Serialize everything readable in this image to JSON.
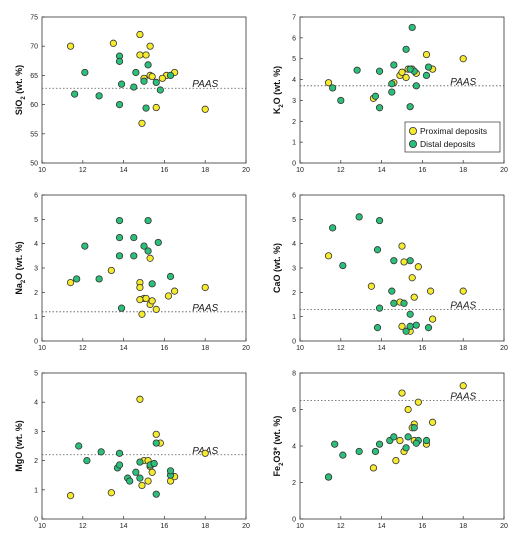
{
  "colors": {
    "proximal": "#f5ea2d",
    "distal": "#2bbf7a",
    "stroke": "#333333"
  },
  "legend": {
    "items": [
      {
        "key": "proximal",
        "label": "Proximal deposits"
      },
      {
        "key": "distal",
        "label": "Distal deposits"
      }
    ]
  },
  "chart_data": [
    {
      "id": "sio2",
      "type": "scatter",
      "ylabel_main": "SiO",
      "ylabel_sub": "2",
      "ylabel_tail": " (wt. %)",
      "xlim": [
        10,
        20
      ],
      "ylim": [
        50,
        75
      ],
      "xticks": [
        10,
        12,
        14,
        16,
        18,
        20
      ],
      "yticks": [
        50,
        55,
        60,
        65,
        70,
        75
      ],
      "ref": {
        "label": "PAAS",
        "value": 62.8
      },
      "series": [
        {
          "key": "proximal",
          "name": "Proximal deposits",
          "points": [
            [
              11.4,
              70
            ],
            [
              13.5,
              70.5
            ],
            [
              14.8,
              72
            ],
            [
              15.3,
              70
            ],
            [
              14.8,
              68.5
            ],
            [
              15.1,
              68.5
            ],
            [
              15.3,
              65
            ],
            [
              15,
              64.5
            ],
            [
              15.4,
              64.8
            ],
            [
              16.1,
              65
            ],
            [
              15.9,
              64.5
            ],
            [
              16.5,
              65.5
            ],
            [
              15.6,
              59.5
            ],
            [
              14.9,
              56.8
            ],
            [
              18,
              59.2
            ]
          ]
        },
        {
          "key": "distal",
          "name": "Distal deposits",
          "points": [
            [
              11.6,
              61.8
            ],
            [
              12.1,
              65.5
            ],
            [
              12.8,
              61.5
            ],
            [
              13.8,
              68.3
            ],
            [
              13.8,
              67.4
            ],
            [
              13.9,
              63.5
            ],
            [
              13.8,
              60
            ],
            [
              14.6,
              65.5
            ],
            [
              14.5,
              63
            ],
            [
              15,
              64
            ],
            [
              15.2,
              66.8
            ],
            [
              15.6,
              63.8
            ],
            [
              15.8,
              62.5
            ],
            [
              16.3,
              65
            ],
            [
              15.1,
              59.4
            ]
          ]
        }
      ]
    },
    {
      "id": "k2o",
      "type": "scatter",
      "ylabel_main": "K",
      "ylabel_sub": "2",
      "ylabel_tail": "O (wt. %)",
      "xlim": [
        10,
        20
      ],
      "ylim": [
        0,
        7
      ],
      "xticks": [
        10,
        12,
        14,
        16,
        18,
        20
      ],
      "yticks": [
        0,
        1,
        2,
        3,
        4,
        5,
        6,
        7
      ],
      "ref": {
        "label": "PAAS",
        "value": 3.7
      },
      "series": [
        {
          "key": "proximal",
          "name": "Proximal deposits",
          "points": [
            [
              11.4,
              3.85
            ],
            [
              13.6,
              3.1
            ],
            [
              14.6,
              3.85
            ],
            [
              14.9,
              4.2
            ],
            [
              15,
              4.35
            ],
            [
              15.2,
              4.1
            ],
            [
              15.3,
              4.5
            ],
            [
              15.5,
              4.5
            ],
            [
              15.7,
              4.3
            ],
            [
              16.2,
              5.2
            ],
            [
              16.5,
              4.5
            ],
            [
              18,
              5
            ]
          ]
        },
        {
          "key": "distal",
          "name": "Distal deposits",
          "points": [
            [
              11.6,
              3.6
            ],
            [
              12,
              3
            ],
            [
              12.8,
              4.45
            ],
            [
              13.7,
              3.2
            ],
            [
              13.9,
              4.4
            ],
            [
              13.9,
              2.65
            ],
            [
              14.5,
              3.8
            ],
            [
              14.5,
              3.4
            ],
            [
              14.6,
              4.7
            ],
            [
              15.2,
              5.45
            ],
            [
              15.4,
              2.7
            ],
            [
              15.5,
              6.5
            ],
            [
              15.6,
              4.4
            ],
            [
              15.7,
              3.7
            ],
            [
              16.2,
              4.2
            ],
            [
              16.3,
              4.6
            ],
            [
              15.4,
              4.5
            ]
          ]
        }
      ]
    },
    {
      "id": "na2o",
      "type": "scatter",
      "ylabel_main": "Na",
      "ylabel_sub": "2",
      "ylabel_tail": "O (wt. %)",
      "xlim": [
        10,
        20
      ],
      "ylim": [
        0,
        6
      ],
      "xticks": [
        10,
        12,
        14,
        16,
        18,
        20
      ],
      "yticks": [
        0,
        1,
        2,
        3,
        4,
        5,
        6
      ],
      "ref": {
        "label": "PAAS",
        "value": 1.2
      },
      "series": [
        {
          "key": "proximal",
          "name": "Proximal deposits",
          "points": [
            [
              11.4,
              2.4
            ],
            [
              13.4,
              2.9
            ],
            [
              14.8,
              2.4
            ],
            [
              14.8,
              2.2
            ],
            [
              15,
              1.75
            ],
            [
              14.8,
              1.7
            ],
            [
              15.1,
              1.75
            ],
            [
              15.3,
              1.5
            ],
            [
              15.4,
              1.65
            ],
            [
              15.6,
              1.3
            ],
            [
              14.9,
              1.1
            ],
            [
              15.3,
              3.4
            ],
            [
              16.2,
              1.85
            ],
            [
              16.5,
              2.05
            ],
            [
              18,
              2.2
            ]
          ]
        },
        {
          "key": "distal",
          "name": "Distal deposits",
          "points": [
            [
              11.7,
              2.55
            ],
            [
              12.1,
              3.9
            ],
            [
              12.8,
              2.55
            ],
            [
              13.8,
              4.95
            ],
            [
              13.8,
              4.25
            ],
            [
              13.8,
              3.5
            ],
            [
              13.9,
              1.35
            ],
            [
              14.5,
              4.25
            ],
            [
              14.5,
              3.5
            ],
            [
              15.2,
              4.95
            ],
            [
              15.2,
              3.7
            ],
            [
              15.4,
              2.35
            ],
            [
              15.7,
              4.05
            ],
            [
              16.3,
              2.65
            ],
            [
              15,
              3.9
            ]
          ]
        }
      ]
    },
    {
      "id": "cao",
      "type": "scatter",
      "ylabel_main": "CaO (wt. %)",
      "ylabel_sub": "",
      "ylabel_tail": "",
      "xlim": [
        10,
        20
      ],
      "ylim": [
        0,
        6
      ],
      "xticks": [
        10,
        12,
        14,
        16,
        18,
        20
      ],
      "yticks": [
        0,
        1,
        2,
        3,
        4,
        5,
        6
      ],
      "ref": {
        "label": "PAAS",
        "value": 1.3
      },
      "series": [
        {
          "key": "proximal",
          "name": "Proximal deposits",
          "points": [
            [
              11.4,
              3.5
            ],
            [
              13.5,
              2.25
            ],
            [
              15,
              3.9
            ],
            [
              15.1,
              3.25
            ],
            [
              15.5,
              2.6
            ],
            [
              15.8,
              3.05
            ],
            [
              15.6,
              1.8
            ],
            [
              14.9,
              1.6
            ],
            [
              15,
              0.6
            ],
            [
              15.4,
              0.4
            ],
            [
              16.4,
              2.05
            ],
            [
              16.5,
              0.9
            ],
            [
              18,
              2.05
            ]
          ]
        },
        {
          "key": "distal",
          "name": "Distal deposits",
          "points": [
            [
              11.6,
              4.65
            ],
            [
              12.1,
              3.1
            ],
            [
              12.9,
              5.1
            ],
            [
              13.8,
              3.75
            ],
            [
              13.9,
              4.95
            ],
            [
              13.9,
              1.35
            ],
            [
              13.8,
              0.55
            ],
            [
              14.5,
              2.05
            ],
            [
              14.6,
              3.3
            ],
            [
              15.1,
              1.55
            ],
            [
              15.4,
              3.3
            ],
            [
              15.2,
              0.4
            ],
            [
              15.4,
              0.6
            ],
            [
              15.7,
              0.65
            ],
            [
              16.3,
              0.55
            ],
            [
              14.6,
              1.55
            ],
            [
              15.4,
              1.1
            ]
          ]
        }
      ]
    },
    {
      "id": "mgo",
      "type": "scatter",
      "ylabel_main": "MgO (wt. %)",
      "ylabel_sub": "",
      "ylabel_tail": "",
      "xlim": [
        10,
        20
      ],
      "ylim": [
        0,
        5
      ],
      "xticks": [
        10,
        12,
        14,
        16,
        18,
        20
      ],
      "yticks": [
        0,
        1,
        2,
        3,
        4,
        5
      ],
      "ref": {
        "label": "PAAS",
        "value": 2.2
      },
      "series": [
        {
          "key": "proximal",
          "name": "Proximal deposits",
          "points": [
            [
              11.4,
              0.8
            ],
            [
              13.4,
              0.9
            ],
            [
              14.8,
              4.1
            ],
            [
              15,
              2
            ],
            [
              15.2,
              2
            ],
            [
              15.3,
              1.8
            ],
            [
              15.4,
              1.6
            ],
            [
              15.2,
              1.3
            ],
            [
              14.9,
              1.15
            ],
            [
              15.6,
              2.9
            ],
            [
              15.8,
              2.6
            ],
            [
              16.3,
              1.3
            ],
            [
              16.5,
              1.45
            ],
            [
              18,
              2.25
            ]
          ]
        },
        {
          "key": "distal",
          "name": "Distal deposits",
          "points": [
            [
              11.8,
              2.5
            ],
            [
              12.2,
              2
            ],
            [
              12.9,
              2.3
            ],
            [
              13.7,
              1.75
            ],
            [
              13.8,
              1.85
            ],
            [
              13.8,
              2.25
            ],
            [
              14.2,
              1.4
            ],
            [
              14.3,
              1.3
            ],
            [
              14.6,
              1.6
            ],
            [
              14.8,
              1.95
            ],
            [
              14.8,
              1.4
            ],
            [
              15.3,
              1.85
            ],
            [
              15.5,
              1.9
            ],
            [
              15.6,
              0.85
            ],
            [
              15.6,
              2.6
            ],
            [
              16.3,
              1.5
            ],
            [
              16.3,
              1.65
            ]
          ]
        }
      ]
    },
    {
      "id": "fe2o3",
      "type": "scatter",
      "ylabel_main": "Fe",
      "ylabel_sub": "2",
      "ylabel_tail": "O3* (wt. %)",
      "xlim": [
        10,
        20
      ],
      "ylim": [
        0,
        8
      ],
      "xticks": [
        10,
        12,
        14,
        16,
        18,
        20
      ],
      "yticks": [
        0,
        2,
        4,
        6,
        8
      ],
      "ref": {
        "label": "PAAS",
        "value": 6.5
      },
      "series": [
        {
          "key": "proximal",
          "name": "Proximal deposits",
          "points": [
            [
              11.4,
              2.3
            ],
            [
              13.6,
              2.8
            ],
            [
              14.7,
              3.2
            ],
            [
              14.9,
              4.3
            ],
            [
              15,
              6.9
            ],
            [
              15.3,
              6
            ],
            [
              15.6,
              5.2
            ],
            [
              15.5,
              5
            ],
            [
              15.8,
              6.4
            ],
            [
              15.1,
              3.7
            ],
            [
              15.6,
              4.3
            ],
            [
              16.2,
              4.1
            ],
            [
              16.5,
              5.3
            ],
            [
              18,
              7.3
            ]
          ]
        },
        {
          "key": "distal",
          "name": "Distal deposits",
          "points": [
            [
              11.4,
              2.3
            ],
            [
              11.7,
              4.1
            ],
            [
              12.1,
              3.5
            ],
            [
              12.9,
              3.7
            ],
            [
              13.7,
              3.7
            ],
            [
              13.9,
              4.1
            ],
            [
              14.4,
              4.3
            ],
            [
              14.6,
              4.5
            ],
            [
              15.2,
              3.9
            ],
            [
              15.3,
              4.5
            ],
            [
              15.6,
              5
            ],
            [
              15.8,
              4.3
            ],
            [
              16.2,
              4.3
            ],
            [
              15.7,
              4.15
            ]
          ]
        }
      ]
    }
  ]
}
